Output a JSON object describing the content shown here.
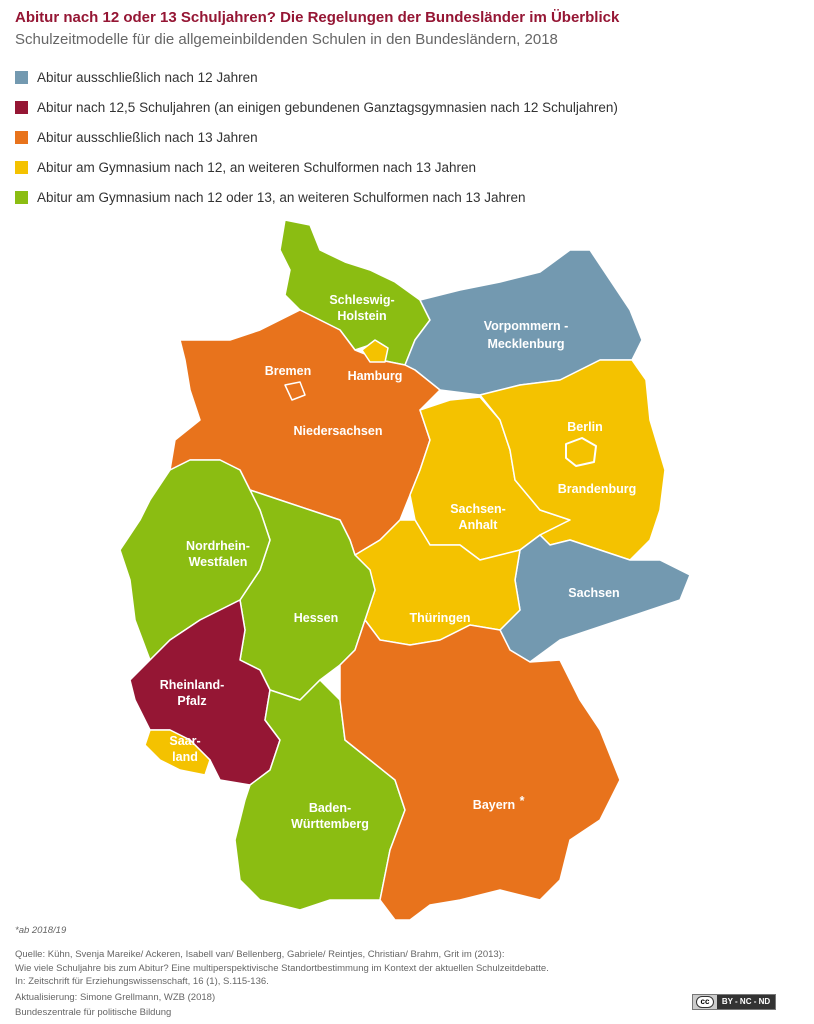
{
  "title": "Abitur nach 12 oder 13 Schuljahren? Die Regelungen der Bundesländer im Überblick",
  "subtitle": "Schulzeitmodelle für die allgemeinbildenden Schulen in den Bundesländern, 2018",
  "colors": {
    "blue": "#7399b0",
    "maroon": "#951634",
    "orange": "#e8731c",
    "yellow": "#f4c200",
    "green": "#8bbd12"
  },
  "legend": [
    {
      "label": "Abitur ausschließlich nach 12 Jahren",
      "color": "#7399b0"
    },
    {
      "label": "Abitur nach 12,5 Schuljahren (an einigen gebundenen Ganztagsgymnasien nach 12 Schuljahren)",
      "color": "#951634"
    },
    {
      "label": "Abitur ausschließlich nach 13 Jahren",
      "color": "#e8731c"
    },
    {
      "label": "Abitur am Gymnasium nach 12, an weiteren Schulformen nach 13 Jahren",
      "color": "#f4c200"
    },
    {
      "label": "Abitur am Gymnasium nach 12 oder 13, an weiteren Schulformen nach 13 Jahren",
      "color": "#8bbd12"
    }
  ],
  "states": {
    "sh": {
      "line1": "Schleswig-",
      "line2": "Holstein",
      "category": "green"
    },
    "mv": {
      "line1": "Vorpommern -",
      "line2": "Mecklenburg",
      "category": "blue"
    },
    "hh": {
      "line1": "Hamburg",
      "category": "yellow"
    },
    "hb": {
      "line1": "Bremen",
      "category": "orange"
    },
    "ni": {
      "line1": "Niedersachsen",
      "category": "orange"
    },
    "be": {
      "line1": "Berlin",
      "category": "yellow"
    },
    "bb": {
      "line1": "Brandenburg",
      "category": "yellow"
    },
    "st": {
      "line1": "Sachsen-",
      "line2": "Anhalt",
      "category": "yellow"
    },
    "nw": {
      "line1": "Nordrhein-",
      "line2": "Westfalen",
      "category": "green"
    },
    "sn": {
      "line1": "Sachsen",
      "category": "blue"
    },
    "he": {
      "line1": "Hessen",
      "category": "green"
    },
    "th": {
      "line1": "Thüringen",
      "category": "yellow"
    },
    "rp": {
      "line1": "Rheinland-",
      "line2": "Pfalz",
      "category": "maroon"
    },
    "sl": {
      "line1": "Saar-",
      "line2": "land",
      "category": "yellow"
    },
    "bw": {
      "line1": "Baden-",
      "line2": "Württemberg",
      "category": "green"
    },
    "by": {
      "line1": "Bayern",
      "asterisk": "*",
      "category": "orange"
    }
  },
  "footnote": "*ab 2018/19",
  "source": [
    "Quelle: Kühn, Svenja Mareike/ Ackeren, Isabell van/ Bellenberg, Gabriele/ Reintjes, Christian/ Brahm, Grit im (2013):",
    "Wie viele Schuljahre bis zum Abitur? Eine multiperspektivische Standortbestimmung im Kontext der aktuellen Schulzeitdebatte.",
    "In: Zeitschrift für Erziehungswissenschaft, 16 (1), S.115-136.",
    "Aktualisierung: Simone Grellmann, WZB (2018)",
    "Bundeszentrale für politische Bildung"
  ],
  "license": {
    "cc": "cc",
    "terms": "BY - NC - ND"
  }
}
